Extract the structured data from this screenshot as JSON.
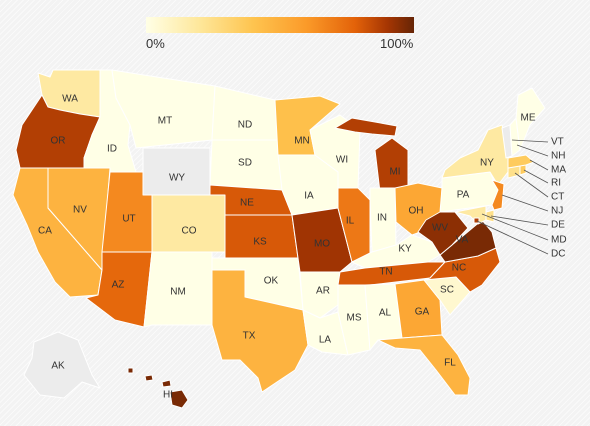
{
  "legend": {
    "min_label": "0%",
    "max_label": "100%",
    "colors": [
      "#ffffe6",
      "#fee79a",
      "#fec44f",
      "#fb9a29",
      "#e36209",
      "#a63603",
      "#662506"
    ]
  },
  "no_data_color": "#ececec",
  "states": {
    "WA": {
      "label": "WA",
      "value": 0.15
    },
    "OR": {
      "label": "OR",
      "value": 0.8
    },
    "CA": {
      "label": "CA",
      "value": 0.4
    },
    "NV": {
      "label": "NV",
      "value": 0.4
    },
    "ID": {
      "label": "ID",
      "value": 0
    },
    "MT": {
      "label": "MT",
      "value": 0
    },
    "WY": {
      "label": "WY",
      "value": null
    },
    "UT": {
      "label": "UT",
      "value": 0.55
    },
    "AZ": {
      "label": "AZ",
      "value": 0.65
    },
    "CO": {
      "label": "CO",
      "value": 0.15
    },
    "NM": {
      "label": "NM",
      "value": 0
    },
    "ND": {
      "label": "ND",
      "value": 0
    },
    "SD": {
      "label": "SD",
      "value": 0
    },
    "NE": {
      "label": "NE",
      "value": 0.7
    },
    "KS": {
      "label": "KS",
      "value": 0.7
    },
    "OK": {
      "label": "OK",
      "value": 0
    },
    "TX": {
      "label": "TX",
      "value": 0.4
    },
    "MN": {
      "label": "MN",
      "value": 0.35
    },
    "IA": {
      "label": "IA",
      "value": 0
    },
    "MO": {
      "label": "MO",
      "value": 0.85
    },
    "AR": {
      "label": "AR",
      "value": 0
    },
    "LA": {
      "label": "LA",
      "value": 0
    },
    "WI": {
      "label": "WI",
      "value": 0
    },
    "IL": {
      "label": "IL",
      "value": 0.6
    },
    "MI": {
      "label": "MI",
      "value": 0.8
    },
    "IN": {
      "label": "IN",
      "value": 0
    },
    "OH": {
      "label": "OH",
      "value": 0.45
    },
    "KY": {
      "label": "KY",
      "value": 0
    },
    "TN": {
      "label": "TN",
      "value": 0.7
    },
    "MS": {
      "label": "MS",
      "value": 0
    },
    "AL": {
      "label": "AL",
      "value": 0
    },
    "GA": {
      "label": "GA",
      "value": 0.45
    },
    "FL": {
      "label": "FL",
      "value": 0.4
    },
    "SC": {
      "label": "SC",
      "value": 0.05
    },
    "NC": {
      "label": "NC",
      "value": 0.7
    },
    "VA": {
      "label": "VA",
      "value": 0.95
    },
    "WV": {
      "label": "WV",
      "value": 0.9
    },
    "PA": {
      "label": "PA",
      "value": 0
    },
    "NY": {
      "label": "NY",
      "value": 0.15
    },
    "ME": {
      "label": "ME",
      "value": 0
    },
    "VT": {
      "label": "VT",
      "value": null
    },
    "NH": {
      "label": "NH",
      "value": 0
    },
    "MA": {
      "label": "MA",
      "value": 0.3
    },
    "RI": {
      "label": "RI",
      "value": 0.3
    },
    "CT": {
      "label": "CT",
      "value": 0.2
    },
    "NJ": {
      "label": "NJ",
      "value": 0.55
    },
    "DE": {
      "label": "DE",
      "value": 0.2
    },
    "MD": {
      "label": "MD",
      "value": 0.15
    },
    "DC": {
      "label": "DC",
      "value": 0.8
    },
    "AK": {
      "label": "AK",
      "value": null
    },
    "HI": {
      "label": "HI",
      "value": 0.95
    }
  }
}
